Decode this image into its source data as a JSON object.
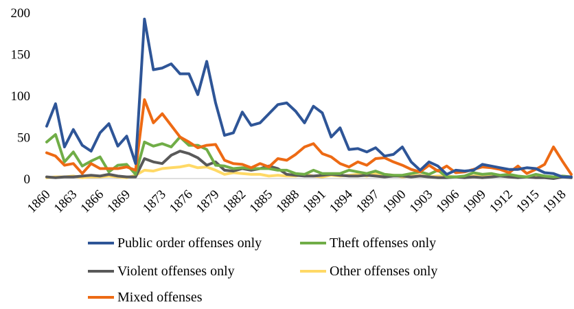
{
  "chart_data": {
    "type": "line",
    "title": "",
    "xlabel": "",
    "ylabel": "",
    "x": [
      1860,
      1861,
      1862,
      1863,
      1864,
      1865,
      1866,
      1867,
      1868,
      1869,
      1870,
      1871,
      1872,
      1873,
      1874,
      1875,
      1876,
      1877,
      1878,
      1879,
      1880,
      1881,
      1882,
      1883,
      1884,
      1885,
      1886,
      1887,
      1888,
      1889,
      1890,
      1891,
      1892,
      1893,
      1894,
      1895,
      1896,
      1897,
      1898,
      1899,
      1900,
      1901,
      1902,
      1903,
      1904,
      1905,
      1906,
      1907,
      1908,
      1909,
      1910,
      1911,
      1912,
      1913,
      1914,
      1915,
      1916,
      1917,
      1918,
      1919
    ],
    "x_ticks": [
      1860,
      1863,
      1866,
      1869,
      1873,
      1876,
      1879,
      1882,
      1885,
      1888,
      1891,
      1894,
      1897,
      1900,
      1903,
      1906,
      1909,
      1912,
      1915,
      1918
    ],
    "ylim": [
      0,
      200
    ],
    "y_ticks": [
      0,
      50,
      100,
      150,
      200
    ],
    "grid": false,
    "legend_position": "bottom",
    "series": [
      {
        "name": "Public order offenses only",
        "color": "#2E5597",
        "values": [
          63,
          90,
          38,
          59,
          40,
          33,
          55,
          66,
          39,
          51,
          18,
          192,
          131,
          133,
          138,
          126,
          126,
          101,
          141,
          91,
          52,
          55,
          80,
          64,
          67,
          78,
          89,
          91,
          81,
          67,
          87,
          79,
          50,
          61,
          35,
          36,
          32,
          37,
          27,
          29,
          38,
          20,
          10,
          20,
          15,
          5,
          10,
          9,
          10,
          17,
          15,
          13,
          11,
          11,
          13,
          12,
          7,
          6,
          2,
          2
        ]
      },
      {
        "name": "Theft offenses only",
        "color": "#70AD47",
        "values": [
          44,
          53,
          20,
          32,
          15,
          21,
          26,
          8,
          16,
          17,
          5,
          44,
          39,
          42,
          38,
          50,
          40,
          40,
          35,
          16,
          15,
          12,
          13,
          12,
          12,
          12,
          10,
          10,
          6,
          5,
          10,
          6,
          6,
          6,
          10,
          8,
          6,
          9,
          5,
          4,
          4,
          6,
          8,
          5,
          10,
          2,
          2,
          3,
          7,
          5,
          6,
          4,
          5,
          3,
          2,
          5,
          3,
          2,
          3,
          2
        ]
      },
      {
        "name": "Violent offenses only",
        "color": "#595959",
        "values": [
          2,
          1,
          2,
          2,
          3,
          4,
          3,
          5,
          3,
          2,
          2,
          24,
          20,
          18,
          28,
          33,
          30,
          25,
          16,
          20,
          10,
          9,
          12,
          10,
          12,
          15,
          12,
          5,
          4,
          3,
          3,
          4,
          5,
          4,
          3,
          3,
          4,
          3,
          2,
          3,
          3,
          2,
          3,
          2,
          1,
          1,
          2,
          1,
          2,
          1,
          2,
          3,
          2,
          1,
          2,
          1,
          1,
          0,
          2,
          1
        ]
      },
      {
        "name": "Other offenses only",
        "color": "#FFD966",
        "values": [
          1,
          2,
          2,
          3,
          1,
          2,
          2,
          3,
          2,
          1,
          4,
          10,
          9,
          12,
          13,
          14,
          16,
          13,
          14,
          10,
          5,
          7,
          6,
          5,
          5,
          3,
          4,
          3,
          3,
          5,
          3,
          2,
          4,
          3,
          4,
          5,
          3,
          6,
          5,
          4,
          2,
          3,
          4,
          2,
          3,
          3,
          2,
          2,
          3,
          4,
          5,
          3,
          4,
          2,
          2,
          3,
          2,
          1,
          3,
          2
        ]
      },
      {
        "name": "Mixed offenses",
        "color": "#ED6A14",
        "values": [
          31,
          27,
          16,
          18,
          6,
          18,
          12,
          12,
          12,
          14,
          10,
          95,
          67,
          78,
          64,
          50,
          44,
          37,
          40,
          41,
          22,
          18,
          17,
          13,
          18,
          14,
          24,
          22,
          29,
          38,
          42,
          30,
          26,
          18,
          14,
          20,
          16,
          24,
          25,
          20,
          16,
          11,
          8,
          16,
          9,
          15,
          7,
          8,
          11,
          14,
          13,
          11,
          7,
          15,
          6,
          11,
          17,
          38,
          21,
          5
        ]
      }
    ]
  }
}
